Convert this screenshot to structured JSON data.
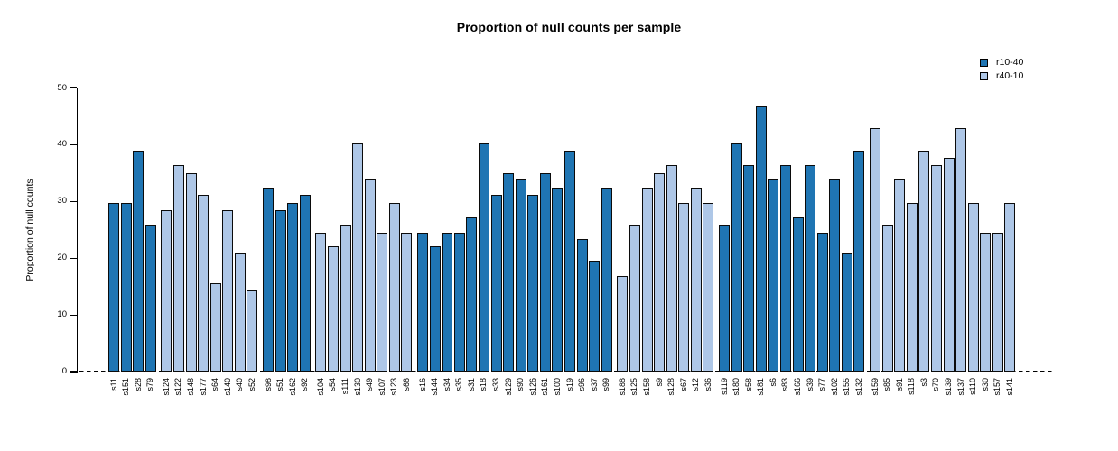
{
  "chart_data": {
    "type": "bar",
    "title": "Proportion of null counts per sample",
    "xlabel": "",
    "ylabel": "Proportion of null counts",
    "ylim": [
      0,
      50
    ],
    "yticks": [
      0,
      10,
      20,
      30,
      40,
      50
    ],
    "grid": false,
    "baseline_style": "dashed",
    "legend": {
      "position": "top-right",
      "entries": [
        {
          "name": "r10-40",
          "color": "#1f75b3"
        },
        {
          "name": "r40-10",
          "color": "#aec7e7"
        }
      ]
    },
    "bars": [
      {
        "sample": "s11",
        "value": 29.8,
        "series": "r10-40"
      },
      {
        "sample": "s151",
        "value": 29.8,
        "series": "r10-40"
      },
      {
        "sample": "s28",
        "value": 39.0,
        "series": "r10-40"
      },
      {
        "sample": "s79",
        "value": 26.0,
        "series": "r10-40"
      },
      {
        "sample": "s124",
        "value": 28.5,
        "series": "r40-10"
      },
      {
        "sample": "s122",
        "value": 36.4,
        "series": "r40-10"
      },
      {
        "sample": "s148",
        "value": 35.0,
        "series": "r40-10"
      },
      {
        "sample": "s177",
        "value": 31.2,
        "series": "r40-10"
      },
      {
        "sample": "s64",
        "value": 15.6,
        "series": "r40-10"
      },
      {
        "sample": "s140",
        "value": 28.5,
        "series": "r40-10"
      },
      {
        "sample": "s40",
        "value": 20.8,
        "series": "r40-10"
      },
      {
        "sample": "s52",
        "value": 14.3,
        "series": "r40-10"
      },
      {
        "sample": "s98",
        "value": 32.5,
        "series": "r10-40"
      },
      {
        "sample": "s51",
        "value": 28.5,
        "series": "r10-40"
      },
      {
        "sample": "s162",
        "value": 29.8,
        "series": "r10-40"
      },
      {
        "sample": "s92",
        "value": 31.2,
        "series": "r10-40"
      },
      {
        "sample": "s104",
        "value": 24.5,
        "series": "r40-10"
      },
      {
        "sample": "s54",
        "value": 22.1,
        "series": "r40-10"
      },
      {
        "sample": "s111",
        "value": 26.0,
        "series": "r40-10"
      },
      {
        "sample": "s130",
        "value": 40.2,
        "series": "r40-10"
      },
      {
        "sample": "s49",
        "value": 33.8,
        "series": "r40-10"
      },
      {
        "sample": "s107",
        "value": 24.5,
        "series": "r40-10"
      },
      {
        "sample": "s123",
        "value": 29.8,
        "series": "r40-10"
      },
      {
        "sample": "s66",
        "value": 24.5,
        "series": "r40-10"
      },
      {
        "sample": "s16",
        "value": 24.5,
        "series": "r10-40"
      },
      {
        "sample": "s144",
        "value": 22.1,
        "series": "r10-40"
      },
      {
        "sample": "s34",
        "value": 24.5,
        "series": "r10-40"
      },
      {
        "sample": "s35",
        "value": 24.5,
        "series": "r10-40"
      },
      {
        "sample": "s31",
        "value": 27.2,
        "series": "r10-40"
      },
      {
        "sample": "s18",
        "value": 40.2,
        "series": "r10-40"
      },
      {
        "sample": "s33",
        "value": 31.2,
        "series": "r10-40"
      },
      {
        "sample": "s129",
        "value": 35.0,
        "series": "r10-40"
      },
      {
        "sample": "s90",
        "value": 33.8,
        "series": "r10-40"
      },
      {
        "sample": "s126",
        "value": 31.2,
        "series": "r10-40"
      },
      {
        "sample": "s161",
        "value": 35.0,
        "series": "r10-40"
      },
      {
        "sample": "s100",
        "value": 32.5,
        "series": "r10-40"
      },
      {
        "sample": "s19",
        "value": 39.0,
        "series": "r10-40"
      },
      {
        "sample": "s96",
        "value": 23.4,
        "series": "r10-40"
      },
      {
        "sample": "s37",
        "value": 19.5,
        "series": "r10-40"
      },
      {
        "sample": "s99",
        "value": 32.5,
        "series": "r10-40"
      },
      {
        "sample": "s188",
        "value": 16.9,
        "series": "r40-10"
      },
      {
        "sample": "s125",
        "value": 26.0,
        "series": "r40-10"
      },
      {
        "sample": "s158",
        "value": 32.5,
        "series": "r40-10"
      },
      {
        "sample": "s9",
        "value": 35.0,
        "series": "r40-10"
      },
      {
        "sample": "s128",
        "value": 36.4,
        "series": "r40-10"
      },
      {
        "sample": "s67",
        "value": 29.8,
        "series": "r40-10"
      },
      {
        "sample": "s12",
        "value": 32.5,
        "series": "r40-10"
      },
      {
        "sample": "s36",
        "value": 29.8,
        "series": "r40-10"
      },
      {
        "sample": "s119",
        "value": 26.0,
        "series": "r10-40"
      },
      {
        "sample": "s180",
        "value": 40.2,
        "series": "r10-40"
      },
      {
        "sample": "s58",
        "value": 36.4,
        "series": "r10-40"
      },
      {
        "sample": "s181",
        "value": 46.8,
        "series": "r10-40"
      },
      {
        "sample": "s6",
        "value": 33.8,
        "series": "r10-40"
      },
      {
        "sample": "s83",
        "value": 36.4,
        "series": "r10-40"
      },
      {
        "sample": "s166",
        "value": 27.2,
        "series": "r10-40"
      },
      {
        "sample": "s39",
        "value": 36.4,
        "series": "r10-40"
      },
      {
        "sample": "s77",
        "value": 24.5,
        "series": "r10-40"
      },
      {
        "sample": "s102",
        "value": 33.8,
        "series": "r10-40"
      },
      {
        "sample": "s155",
        "value": 20.8,
        "series": "r10-40"
      },
      {
        "sample": "s132",
        "value": 39.0,
        "series": "r10-40"
      },
      {
        "sample": "s159",
        "value": 42.9,
        "series": "r40-10"
      },
      {
        "sample": "s85",
        "value": 26.0,
        "series": "r40-10"
      },
      {
        "sample": "s91",
        "value": 33.8,
        "series": "r40-10"
      },
      {
        "sample": "s118",
        "value": 29.8,
        "series": "r40-10"
      },
      {
        "sample": "s3",
        "value": 39.0,
        "series": "r40-10"
      },
      {
        "sample": "s70",
        "value": 36.4,
        "series": "r40-10"
      },
      {
        "sample": "s139",
        "value": 37.7,
        "series": "r40-10"
      },
      {
        "sample": "s137",
        "value": 42.9,
        "series": "r40-10"
      },
      {
        "sample": "s110",
        "value": 29.8,
        "series": "r40-10"
      },
      {
        "sample": "s30",
        "value": 24.5,
        "series": "r40-10"
      },
      {
        "sample": "s157",
        "value": 24.5,
        "series": "r40-10"
      },
      {
        "sample": "s141",
        "value": 29.8,
        "series": "r40-10"
      }
    ]
  }
}
